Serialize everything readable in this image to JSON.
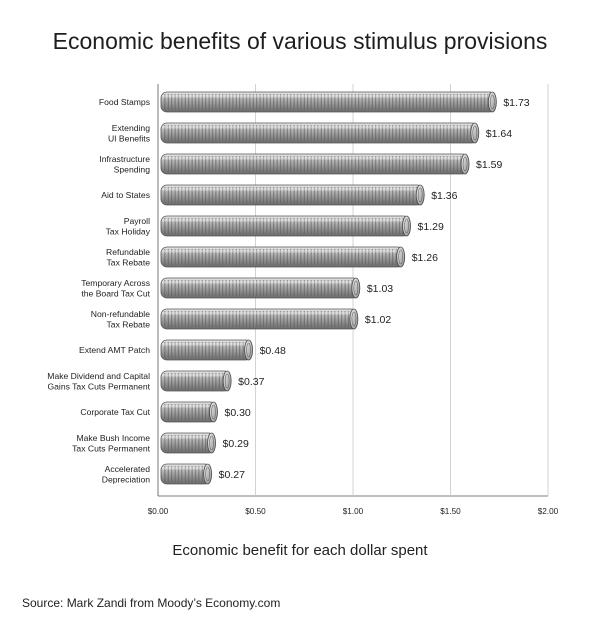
{
  "chart_data": {
    "type": "bar",
    "orientation": "horizontal",
    "title": "Economic benefits of various stimulus provisions",
    "xlabel": "Economic benefit for each dollar spent",
    "ylabel": "",
    "source": "Source: Mark Zandi from Moody’s Economy.com",
    "xlim": [
      0,
      2
    ],
    "ticks": [
      0,
      0.5,
      1.0,
      1.5,
      2.0
    ],
    "tick_labels": [
      "$0.00",
      "$0.50",
      "$1.00",
      "$1.50",
      "$2.00"
    ],
    "grid": true,
    "categories": [
      [
        "Food Stamps"
      ],
      [
        "Extending",
        "UI Benefits"
      ],
      [
        "Infrastructure",
        "Spending"
      ],
      [
        "Aid to States"
      ],
      [
        "Payroll",
        "Tax Holiday"
      ],
      [
        "Refundable",
        "Tax Rebate"
      ],
      [
        "Temporary Across",
        "the Board Tax Cut"
      ],
      [
        "Non-refundable",
        "Tax Rebate"
      ],
      [
        "Extend AMT Patch"
      ],
      [
        "Make Dividend and Capital",
        "Gains Tax Cuts Permanent"
      ],
      [
        "Corporate Tax Cut"
      ],
      [
        "Make Bush Income",
        "Tax Cuts Permanent"
      ],
      [
        "Accelerated",
        "Depreciation"
      ]
    ],
    "values": [
      1.73,
      1.64,
      1.59,
      1.36,
      1.29,
      1.26,
      1.03,
      1.02,
      0.48,
      0.37,
      0.3,
      0.29,
      0.27
    ],
    "value_labels": [
      "$1.73",
      "$1.64",
      "$1.59",
      "$1.36",
      "$1.29",
      "$1.26",
      "$1.03",
      "$1.02",
      "$0.48",
      "$0.37",
      "$0.30",
      "$0.29",
      "$0.27"
    ],
    "bar_color": "#9a9a9a",
    "coin_edge_color": "#555555",
    "grid_color": "#c8c8c8"
  }
}
